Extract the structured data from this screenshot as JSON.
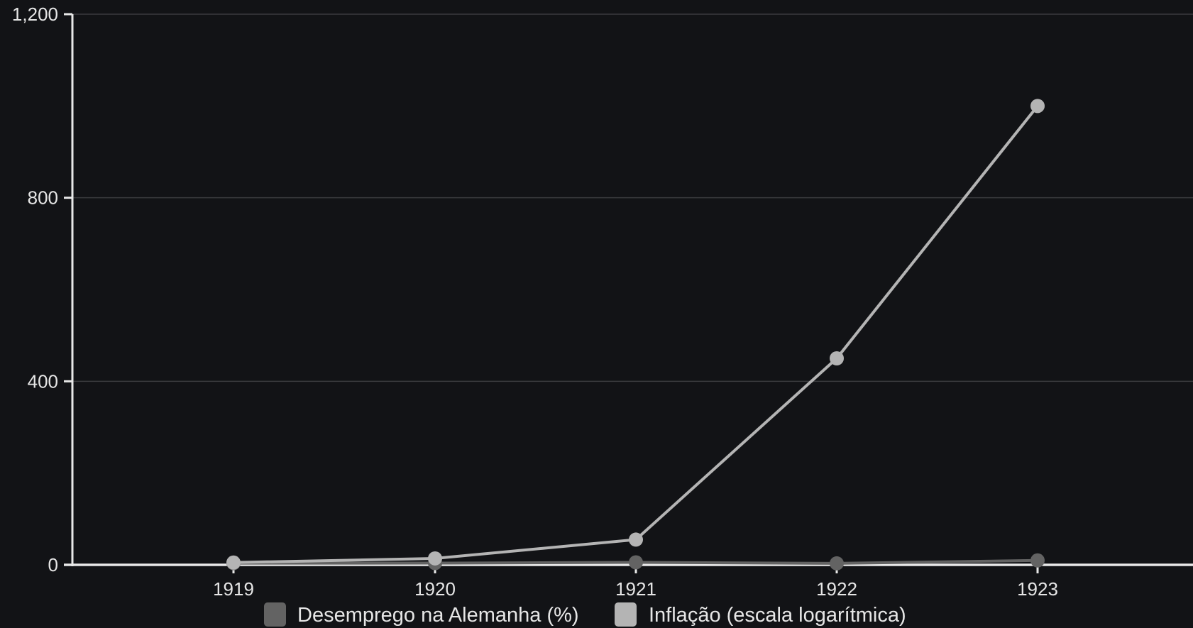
{
  "chart_data": {
    "type": "line",
    "title": "",
    "xlabel": "",
    "ylabel": "",
    "categories": [
      "1919",
      "1920",
      "1921",
      "1922",
      "1923"
    ],
    "ylim": [
      0,
      1200
    ],
    "yticks": [
      0,
      400,
      800,
      1200
    ],
    "ytick_labels": [
      "0",
      "400",
      "800",
      "1,200"
    ],
    "grid": true,
    "legend_position": "bottom",
    "series": [
      {
        "name": "Desemprego na Alemanha (%)",
        "values": [
          3.7,
          3.8,
          5.5,
          3.2,
          9.6
        ],
        "color": "#636363"
      },
      {
        "name": "Inflação (escala logarítmica)",
        "values": [
          5,
          14,
          55,
          450,
          1000
        ],
        "color": "#b4b4b4"
      }
    ],
    "colors": {
      "background": "#121316",
      "axis": "#e8e8e8",
      "grid": "#3a3b3e",
      "text": "#e6e6e6"
    }
  }
}
